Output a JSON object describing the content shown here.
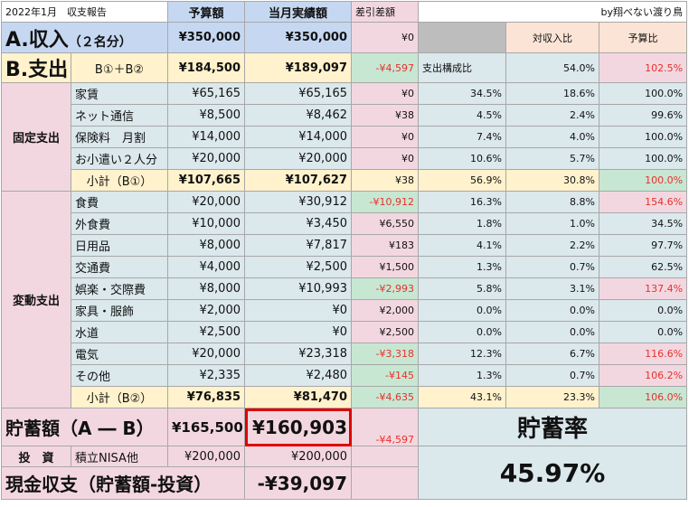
{
  "header": {
    "title": "2022年1月　収支報告",
    "col_budget": "予算額",
    "col_actual": "当月実績額",
    "col_diff": "差引差額",
    "credit": "by翔べない渡り鳥"
  },
  "income": {
    "label": "A.収入",
    "sub": "（２名分）",
    "budget": "¥350,000",
    "actual": "¥350,000",
    "diff": "¥0",
    "col_income_ratio": "対収入比",
    "col_budget_ratio": "予算比"
  },
  "expense": {
    "label": "B.支出",
    "formula": "B①＋B②",
    "budget": "¥184,500",
    "actual": "¥189,097",
    "diff": "-¥4,597",
    "ratio_label": "支出構成比",
    "income_ratio": "54.0%",
    "budget_ratio": "102.5%"
  },
  "fixed": {
    "group": "固定支出",
    "rows": [
      {
        "name": "家賃",
        "budget": "¥65,165",
        "actual": "¥65,165",
        "diff": "¥0",
        "share": "34.5%",
        "income_ratio": "18.6%",
        "budget_ratio": "100.0%"
      },
      {
        "name": "ネット通信",
        "budget": "¥8,500",
        "actual": "¥8,462",
        "diff": "¥38",
        "share": "4.5%",
        "income_ratio": "2.4%",
        "budget_ratio": "99.6%"
      },
      {
        "name": "保険料　月割",
        "budget": "¥14,000",
        "actual": "¥14,000",
        "diff": "¥0",
        "share": "7.4%",
        "income_ratio": "4.0%",
        "budget_ratio": "100.0%"
      },
      {
        "name": "お小遣い２人分",
        "budget": "¥20,000",
        "actual": "¥20,000",
        "diff": "¥0",
        "share": "10.6%",
        "income_ratio": "5.7%",
        "budget_ratio": "100.0%"
      }
    ],
    "subtotal": {
      "name": "小計（B①）",
      "budget": "¥107,665",
      "actual": "¥107,627",
      "diff": "¥38",
      "share": "56.9%",
      "income_ratio": "30.8%",
      "budget_ratio": "100.0%"
    }
  },
  "variable": {
    "group": "変動支出",
    "rows": [
      {
        "name": "食費",
        "budget": "¥20,000",
        "actual": "¥30,912",
        "diff": "-¥10,912",
        "share": "16.3%",
        "income_ratio": "8.8%",
        "budget_ratio": "154.6%"
      },
      {
        "name": "外食費",
        "budget": "¥10,000",
        "actual": "¥3,450",
        "diff": "¥6,550",
        "share": "1.8%",
        "income_ratio": "1.0%",
        "budget_ratio": "34.5%"
      },
      {
        "name": "日用品",
        "budget": "¥8,000",
        "actual": "¥7,817",
        "diff": "¥183",
        "share": "4.1%",
        "income_ratio": "2.2%",
        "budget_ratio": "97.7%"
      },
      {
        "name": "交通費",
        "budget": "¥4,000",
        "actual": "¥2,500",
        "diff": "¥1,500",
        "share": "1.3%",
        "income_ratio": "0.7%",
        "budget_ratio": "62.5%"
      },
      {
        "name": "娯楽・交際費",
        "budget": "¥8,000",
        "actual": "¥10,993",
        "diff": "-¥2,993",
        "share": "5.8%",
        "income_ratio": "3.1%",
        "budget_ratio": "137.4%"
      },
      {
        "name": "家具・服飾",
        "budget": "¥2,000",
        "actual": "¥0",
        "diff": "¥2,000",
        "share": "0.0%",
        "income_ratio": "0.0%",
        "budget_ratio": "0.0%"
      },
      {
        "name": "水道",
        "budget": "¥2,500",
        "actual": "¥0",
        "diff": "¥2,500",
        "share": "0.0%",
        "income_ratio": "0.0%",
        "budget_ratio": "0.0%"
      },
      {
        "name": "電気",
        "budget": "¥20,000",
        "actual": "¥23,318",
        "diff": "-¥3,318",
        "share": "12.3%",
        "income_ratio": "6.7%",
        "budget_ratio": "116.6%"
      },
      {
        "name": "その他",
        "budget": "¥2,335",
        "actual": "¥2,480",
        "diff": "-¥145",
        "share": "1.3%",
        "income_ratio": "0.7%",
        "budget_ratio": "106.2%"
      }
    ],
    "subtotal": {
      "name": "小計（B②）",
      "budget": "¥76,835",
      "actual": "¥81,470",
      "diff": "-¥4,635",
      "share": "43.1%",
      "income_ratio": "23.3%",
      "budget_ratio": "106.0%"
    }
  },
  "savings": {
    "label": "貯蓄額（A ― B）",
    "budget": "¥165,500",
    "actual": "¥160,903",
    "diff": "-¥4,597",
    "rate_label": "貯蓄率",
    "rate_value": "45.97%"
  },
  "investment": {
    "label": "投　資",
    "name": "積立NISA他",
    "budget": "¥200,000",
    "actual": "¥200,000"
  },
  "cash_flow": {
    "label": "現金収支（貯蓄額-投資）",
    "value": "-¥39,097"
  },
  "colors": {
    "negative": "#e8302a",
    "highlight_border": "#e00000",
    "pink": "#f3d7e0",
    "blue": "#c6d8f1",
    "green": "#c7e7d3",
    "yellow": "#fff2cc"
  }
}
